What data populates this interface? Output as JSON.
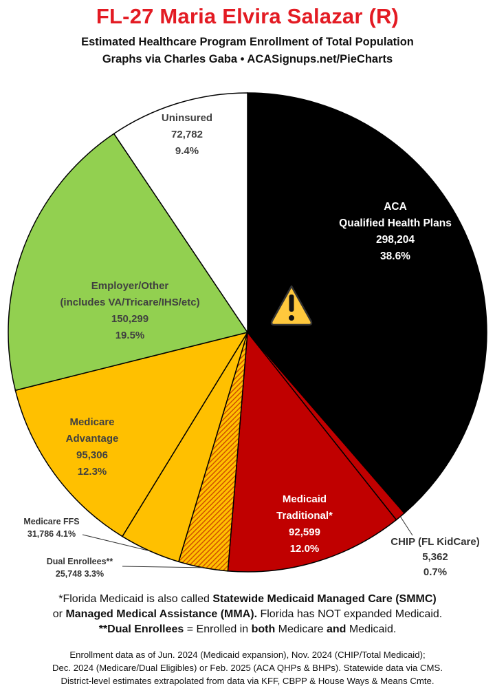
{
  "header": {
    "title": "FL-27 Maria Elvira Salazar (R)",
    "subtitle1": "Estimated Healthcare Program Enrollment of Total Population",
    "subtitle2": "Graphs via Charles Gaba  •  ACASignups.net/PieCharts"
  },
  "chart_data": {
    "type": "pie",
    "start_angle_deg": 0,
    "direction": "clockwise",
    "slices": [
      {
        "key": "aca",
        "lines": [
          "ACA",
          "Qualified Health Plans"
        ],
        "value": 298204,
        "value_label": "298,204",
        "percent": "38.6%",
        "color": "#000000",
        "label_color": "#ffffff"
      },
      {
        "key": "chip",
        "lines": [
          "CHIP (FL KidCare)"
        ],
        "value": 5362,
        "value_label": "5,362",
        "percent": "0.7%",
        "color": "#c00000",
        "label_color": "#333333"
      },
      {
        "key": "medicaid",
        "lines": [
          "Medicaid",
          "Traditional*"
        ],
        "value": 92599,
        "value_label": "92,599",
        "percent": "12.0%",
        "color": "#c00000",
        "label_color": "#ffffff"
      },
      {
        "key": "dual",
        "lines": [
          "Dual Enrollees**"
        ],
        "value": 25748,
        "value_label": "25,748",
        "percent": "3.3%",
        "color": "#e06000",
        "pattern": "hatch",
        "label_color": "#333333"
      },
      {
        "key": "medicare_ffs",
        "lines": [
          "Medicare FFS"
        ],
        "value": 31786,
        "value_label": "31,786",
        "percent": "4.1%",
        "color": "#ffc000",
        "label_color": "#333333"
      },
      {
        "key": "medicare_adv",
        "lines": [
          "Medicare",
          "Advantage"
        ],
        "value": 95306,
        "value_label": "95,306",
        "percent": "12.3%",
        "color": "#ffc000",
        "label_color": "#404040"
      },
      {
        "key": "employer",
        "lines": [
          "Employer/Other",
          "(includes VA/Tricare/IHS/etc)"
        ],
        "value": 150299,
        "value_label": "150,299",
        "percent": "19.5%",
        "color": "#92d050",
        "label_color": "#404040"
      },
      {
        "key": "uninsured",
        "lines": [
          "Uninsured"
        ],
        "value": 72782,
        "value_label": "72,782",
        "percent": "9.4%",
        "color": "#ffffff",
        "label_color": "#404040"
      }
    ],
    "warning_icon": "warning-triangle-icon"
  },
  "notes": {
    "n1_a": "*Florida Medicaid is also called ",
    "n1_b": "Statewide Medicaid Managed Care (SMMC)",
    "n2_a": "or ",
    "n2_b": "Managed Medical Assistance (MMA).",
    "n2_c": " Florida has NOT expanded Medicaid.",
    "n3_a": "**Dual Enrollees",
    "n3_b": " = Enrolled in ",
    "n3_c": "both",
    "n3_d": " Medicare ",
    "n3_e": "and",
    "n3_f": " Medicaid."
  },
  "footer": {
    "line1": "Enrollment data as of Jun. 2024 (Medicaid expansion), Nov. 2024 (CHIP/Total Medicaid);",
    "line2": "Dec. 2024 (Medicare/Dual Eligibles) or Feb. 2025 (ACA QHPs & BHPs). Statewide data via CMS.",
    "line3": "District-level estimates extrapolated from data via KFF, CBPP & House Ways & Means Cmte."
  }
}
